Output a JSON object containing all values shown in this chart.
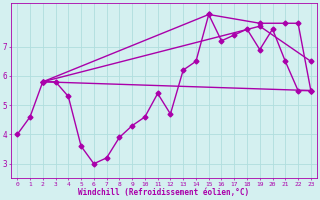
{
  "xlabel": "Windchill (Refroidissement éolien,°C)",
  "background_color": "#d4f0f0",
  "grid_color": "#b0dede",
  "line_color": "#aa00aa",
  "xlim": [
    -0.5,
    23.5
  ],
  "ylim": [
    2.5,
    8.5
  ],
  "xticks": [
    0,
    1,
    2,
    3,
    4,
    5,
    6,
    7,
    8,
    9,
    10,
    11,
    12,
    13,
    14,
    15,
    16,
    17,
    18,
    19,
    20,
    21,
    22,
    23
  ],
  "yticks": [
    3,
    4,
    5,
    6,
    7
  ],
  "series": [
    {
      "x": [
        0,
        1,
        2,
        3,
        4,
        5,
        6,
        7,
        8,
        9,
        10,
        11,
        12,
        13,
        14,
        15,
        16,
        17,
        18,
        19,
        20,
        21,
        22,
        23
      ],
      "y": [
        4.0,
        4.6,
        5.8,
        5.8,
        5.3,
        3.6,
        3.0,
        3.2,
        3.9,
        4.3,
        4.6,
        5.4,
        4.7,
        6.2,
        6.5,
        8.1,
        7.2,
        7.4,
        7.6,
        6.9,
        7.6,
        6.5,
        5.5,
        5.5
      ],
      "marker": "D",
      "markersize": 2.5,
      "linewidth": 1.0
    },
    {
      "x": [
        2,
        23
      ],
      "y": [
        5.8,
        5.5
      ],
      "marker": "D",
      "markersize": 2.5,
      "linewidth": 1.0
    },
    {
      "x": [
        2,
        19,
        23
      ],
      "y": [
        5.8,
        7.7,
        6.5
      ],
      "marker": "D",
      "markersize": 2.5,
      "linewidth": 1.0
    },
    {
      "x": [
        2,
        15,
        19,
        21,
        22,
        23
      ],
      "y": [
        5.8,
        8.1,
        7.8,
        7.8,
        7.8,
        5.5
      ],
      "marker": "D",
      "markersize": 2.5,
      "linewidth": 1.0
    }
  ]
}
